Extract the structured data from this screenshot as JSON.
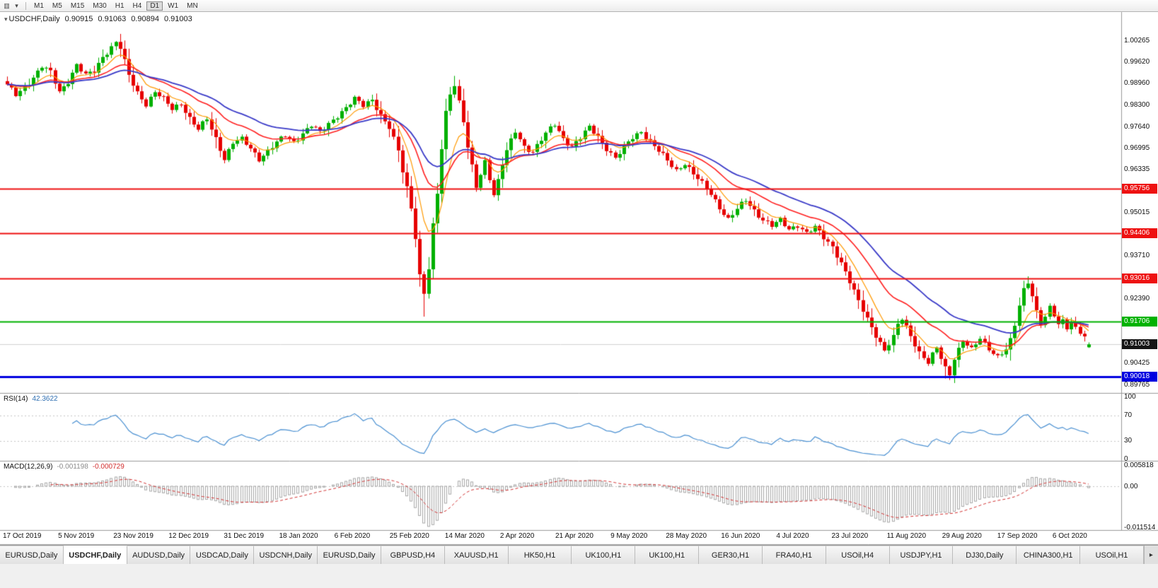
{
  "toolbar": {
    "chart_icon_glyph": "▥",
    "dropdown_glyph": "▾",
    "timeframes": [
      "M1",
      "M5",
      "M15",
      "M30",
      "H1",
      "H4",
      "D1",
      "W1",
      "MN"
    ],
    "active_timeframe": "D1"
  },
  "chart": {
    "collapse_glyph": "▾",
    "symbol": "USDCHF,Daily",
    "open": "0.90915",
    "high": "0.91063",
    "low": "0.90894",
    "close": "0.91003"
  },
  "price_axis": {
    "ticks": [
      "1.00265",
      "0.99620",
      "0.98960",
      "0.98300",
      "0.97640",
      "0.96995",
      "0.96335",
      "0.95015",
      "0.93710",
      "0.92390",
      "0.90425",
      "0.89765"
    ],
    "tags": [
      {
        "text": "0.95756",
        "color": "#ee1111"
      },
      {
        "text": "0.94406",
        "color": "#ee1111"
      },
      {
        "text": "0.93016",
        "color": "#ee1111"
      },
      {
        "text": "0.91706",
        "color": "#00b200"
      },
      {
        "text": "0.91003",
        "color": "#151515"
      },
      {
        "text": "0.90018",
        "color": "#0000e0"
      }
    ]
  },
  "rsi": {
    "name": "RSI(14)",
    "value": "42.3622",
    "axis": [
      "100",
      "70",
      "30",
      "0"
    ],
    "levels": [
      70,
      30
    ],
    "line_color": "#4a90d2"
  },
  "macd": {
    "name": "MACD(12,26,9)",
    "main_value": "-0.001198",
    "signal_value": "-0.000729",
    "axis": [
      "0.005818",
      "0.00",
      "-0.011514"
    ],
    "histogram_color": "#a8a8a8",
    "signal_color": "#d23030"
  },
  "tabs": {
    "items": [
      "EURUSD,Daily",
      "USDCHF,Daily",
      "AUDUSD,Daily",
      "USDCAD,Daily",
      "USDCNH,Daily",
      "EURUSD,Daily",
      "GBPUSD,H4",
      "XAUUSD,H1",
      "HK50,H1",
      "UK100,H1",
      "UK100,H1",
      "GER30,H1",
      "FRA40,H1",
      "USOil,H4",
      "USDJPY,H1",
      "DJ30,Daily",
      "CHINA300,H1",
      "USOil,H1"
    ],
    "active_index": 1,
    "scroll_glyph": "▸"
  },
  "chart_data": {
    "type": "candlestick",
    "symbol": "USDCHF",
    "timeframe": "Daily",
    "bars": 250,
    "price_range": [
      0.8952,
      1.0115
    ],
    "bull_color": "#00b000",
    "bear_color": "#e60000",
    "bid_price": 0.91003,
    "last_candle": {
      "o": 0.90915,
      "h": 0.91063,
      "l": 0.90894,
      "c": 0.91003
    },
    "moving_averages": [
      {
        "period": 8,
        "color": "#ff9900",
        "width": 1.2
      },
      {
        "period": 20,
        "color": "#ff2020",
        "width": 1.6
      },
      {
        "period": 34,
        "color": "#3a3ac8",
        "width": 1.8
      }
    ],
    "horizontal_lines": [
      {
        "price": 0.95756,
        "color": "#ee1111",
        "width": 2
      },
      {
        "price": 0.94406,
        "color": "#ee1111",
        "width": 2
      },
      {
        "price": 0.93016,
        "color": "#ee1111",
        "width": 2
      },
      {
        "price": 0.91706,
        "color": "#00b200",
        "width": 2
      },
      {
        "price": 0.90018,
        "color": "#0000e0",
        "width": 3
      }
    ],
    "dates": [
      "17 Oct 2019",
      "5 Nov 2019",
      "23 Nov 2019",
      "12 Dec 2019",
      "31 Dec 2019",
      "18 Jan 2020",
      "6 Feb 2020",
      "25 Feb 2020",
      "14 Mar 2020",
      "2 Apr 2020",
      "21 Apr 2020",
      "9 May 2020",
      "28 May 2020",
      "16 Jun 2020",
      "4 Jul 2020",
      "23 Jul 2020",
      "11 Aug 2020",
      "29 Aug 2020",
      "17 Sep 2020",
      "6 Oct 2020"
    ],
    "close_anchors": [
      [
        0,
        0.989
      ],
      [
        2,
        0.9862
      ],
      [
        5,
        0.99
      ],
      [
        8,
        0.9948
      ],
      [
        10,
        0.993
      ],
      [
        12,
        0.9872
      ],
      [
        14,
        0.9905
      ],
      [
        16,
        0.9953
      ],
      [
        18,
        0.992
      ],
      [
        20,
        0.9935
      ],
      [
        22,
        0.998
      ],
      [
        25,
        1.0022
      ],
      [
        26,
        1.0005
      ],
      [
        28,
        0.992
      ],
      [
        30,
        0.987
      ],
      [
        32,
        0.9835
      ],
      [
        34,
        0.987
      ],
      [
        36,
        0.9848
      ],
      [
        38,
        0.982
      ],
      [
        40,
        0.9838
      ],
      [
        42,
        0.979
      ],
      [
        44,
        0.9755
      ],
      [
        46,
        0.9788
      ],
      [
        48,
        0.973
      ],
      [
        50,
        0.9668
      ],
      [
        52,
        0.9715
      ],
      [
        54,
        0.9725
      ],
      [
        56,
        0.97
      ],
      [
        58,
        0.9668
      ],
      [
        60,
        0.969
      ],
      [
        62,
        0.9715
      ],
      [
        64,
        0.9738
      ],
      [
        66,
        0.972
      ],
      [
        68,
        0.9745
      ],
      [
        70,
        0.9768
      ],
      [
        72,
        0.9745
      ],
      [
        74,
        0.9775
      ],
      [
        76,
        0.98
      ],
      [
        78,
        0.9822
      ],
      [
        80,
        0.9848
      ],
      [
        82,
        0.983
      ],
      [
        84,
        0.985
      ],
      [
        86,
        0.98
      ],
      [
        88,
        0.976
      ],
      [
        90,
        0.969
      ],
      [
        91,
        0.963
      ],
      [
        92,
        0.958
      ],
      [
        93,
        0.952
      ],
      [
        94,
        0.943
      ],
      [
        95,
        0.931
      ],
      [
        96,
        0.9255
      ],
      [
        97,
        0.933
      ],
      [
        98,
        0.946
      ],
      [
        99,
        0.956
      ],
      [
        100,
        0.97
      ],
      [
        101,
        0.981
      ],
      [
        102,
        0.987
      ],
      [
        103,
        0.9895
      ],
      [
        104,
        0.984
      ],
      [
        105,
        0.978
      ],
      [
        106,
        0.97
      ],
      [
        107,
        0.964
      ],
      [
        108,
        0.958
      ],
      [
        109,
        0.962
      ],
      [
        110,
        0.966
      ],
      [
        111,
        0.961
      ],
      [
        112,
        0.956
      ],
      [
        113,
        0.96
      ],
      [
        114,
        0.965
      ],
      [
        115,
        0.969
      ],
      [
        117,
        0.975
      ],
      [
        119,
        0.9705
      ],
      [
        121,
        0.969
      ],
      [
        123,
        0.9725
      ],
      [
        125,
        0.9758
      ],
      [
        126,
        0.9772
      ],
      [
        128,
        0.973
      ],
      [
        130,
        0.9705
      ],
      [
        132,
        0.973
      ],
      [
        134,
        0.9762
      ],
      [
        136,
        0.9735
      ],
      [
        138,
        0.97
      ],
      [
        140,
        0.9668
      ],
      [
        142,
        0.97
      ],
      [
        144,
        0.9732
      ],
      [
        146,
        0.9752
      ],
      [
        148,
        0.972
      ],
      [
        150,
        0.969
      ],
      [
        152,
        0.966
      ],
      [
        154,
        0.9632
      ],
      [
        156,
        0.9655
      ],
      [
        158,
        0.962
      ],
      [
        160,
        0.959
      ],
      [
        162,
        0.956
      ],
      [
        164,
        0.952
      ],
      [
        166,
        0.9482
      ],
      [
        168,
        0.9512
      ],
      [
        170,
        0.954
      ],
      [
        172,
        0.951
      ],
      [
        174,
        0.9482
      ],
      [
        176,
        0.9462
      ],
      [
        178,
        0.9478
      ],
      [
        180,
        0.9452
      ],
      [
        182,
        0.9466
      ],
      [
        184,
        0.944
      ],
      [
        186,
        0.9456
      ],
      [
        188,
        0.9426
      ],
      [
        190,
        0.94
      ],
      [
        192,
        0.935
      ],
      [
        194,
        0.929
      ],
      [
        196,
        0.923
      ],
      [
        198,
        0.918
      ],
      [
        200,
        0.913
      ],
      [
        202,
        0.908
      ],
      [
        204,
        0.912
      ],
      [
        205,
        0.916
      ],
      [
        206,
        0.918
      ],
      [
        208,
        0.913
      ],
      [
        210,
        0.9075
      ],
      [
        212,
        0.9042
      ],
      [
        214,
        0.909
      ],
      [
        216,
        0.903
      ],
      [
        217,
        0.9012
      ],
      [
        218,
        0.906
      ],
      [
        220,
        0.911
      ],
      [
        222,
        0.9082
      ],
      [
        224,
        0.912
      ],
      [
        226,
        0.909
      ],
      [
        228,
        0.9062
      ],
      [
        230,
        0.9082
      ],
      [
        231,
        0.911
      ],
      [
        232,
        0.916
      ],
      [
        233,
        0.922
      ],
      [
        234,
        0.927
      ],
      [
        235,
        0.9295
      ],
      [
        236,
        0.925
      ],
      [
        237,
        0.92
      ],
      [
        238,
        0.9162
      ],
      [
        239,
        0.918
      ],
      [
        240,
        0.921
      ],
      [
        241,
        0.919
      ],
      [
        242,
        0.9162
      ],
      [
        243,
        0.9176
      ],
      [
        244,
        0.9156
      ],
      [
        245,
        0.917
      ],
      [
        246,
        0.915
      ],
      [
        247,
        0.9136
      ],
      [
        249,
        0.91
      ]
    ],
    "wick_overrides": {
      "25": {
        "h": 1.00265
      },
      "96": {
        "l": 0.9185
      },
      "103": {
        "h": 0.992
      },
      "216": {
        "l": 0.8996
      },
      "235": {
        "h": 0.9308
      }
    }
  }
}
